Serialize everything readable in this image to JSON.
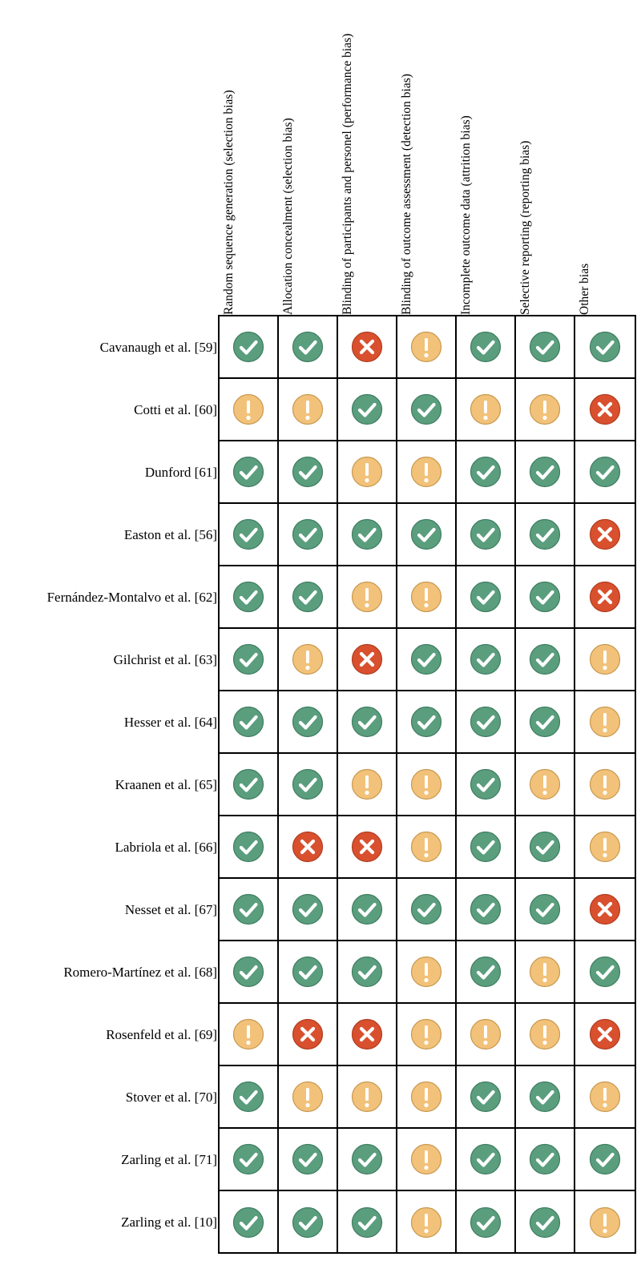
{
  "columns": [
    "Random sequence generation  (selection  bias)",
    "Allocation concealment (selection bias)",
    "Blinding of participants and personel (performance bias)",
    "Blinding of outcome assessment (detection bias)",
    "Incomplete outcome data (attrition bias)",
    "Selective reporting (reporting bias)",
    "Other bias"
  ],
  "studies": [
    {
      "name": "Cavanaugh et al. [59]",
      "ratings": [
        "low",
        "low",
        "high",
        "unclear",
        "low",
        "low",
        "low"
      ]
    },
    {
      "name": "Cotti et al. [60]",
      "ratings": [
        "unclear",
        "unclear",
        "low",
        "low",
        "unclear",
        "unclear",
        "high"
      ]
    },
    {
      "name": "Dunford [61]",
      "ratings": [
        "low",
        "low",
        "unclear",
        "unclear",
        "low",
        "low",
        "low"
      ]
    },
    {
      "name": "Easton et al. [56]",
      "ratings": [
        "low",
        "low",
        "low",
        "low",
        "low",
        "low",
        "high"
      ]
    },
    {
      "name": "Fernández-Montalvo et al. [62]",
      "ratings": [
        "low",
        "low",
        "unclear",
        "unclear",
        "low",
        "low",
        "high"
      ]
    },
    {
      "name": "Gilchrist et al.  [63]",
      "ratings": [
        "low",
        "unclear",
        "high",
        "low",
        "low",
        "low",
        "unclear"
      ]
    },
    {
      "name": "Hesser et al. [64]",
      "ratings": [
        "low",
        "low",
        "low",
        "low",
        "low",
        "low",
        "unclear"
      ]
    },
    {
      "name": "Kraanen et al. [65]",
      "ratings": [
        "low",
        "low",
        "unclear",
        "unclear",
        "low",
        "unclear",
        "unclear"
      ]
    },
    {
      "name": "Labriola et al. [66]",
      "ratings": [
        "low",
        "high",
        "high",
        "unclear",
        "low",
        "low",
        "unclear"
      ]
    },
    {
      "name": "Nesset et al. [67]",
      "ratings": [
        "low",
        "low",
        "low",
        "low",
        "low",
        "low",
        "high"
      ]
    },
    {
      "name": "Romero-Martínez et al. [68]",
      "ratings": [
        "low",
        "low",
        "low",
        "unclear",
        "low",
        "unclear",
        "low"
      ]
    },
    {
      "name": "Rosenfeld et al. [69]",
      "ratings": [
        "unclear",
        "high",
        "high",
        "unclear",
        "unclear",
        "unclear",
        "high"
      ]
    },
    {
      "name": "Stover et al. [70]",
      "ratings": [
        "low",
        "unclear",
        "unclear",
        "unclear",
        "low",
        "low",
        "unclear"
      ]
    },
    {
      "name": "Zarling et al. [71]",
      "ratings": [
        "low",
        "low",
        "low",
        "unclear",
        "low",
        "low",
        "low"
      ]
    },
    {
      "name": "Zarling et al. [10]",
      "ratings": [
        "low",
        "low",
        "low",
        "unclear",
        "low",
        "low",
        "unclear"
      ]
    }
  ],
  "icons": {
    "low": {
      "name": "check-icon",
      "color": "#5a9e7e"
    },
    "unclear": {
      "name": "exclamation-icon",
      "color": "#f2c27a"
    },
    "high": {
      "name": "cross-icon",
      "color": "#d9502e"
    }
  }
}
